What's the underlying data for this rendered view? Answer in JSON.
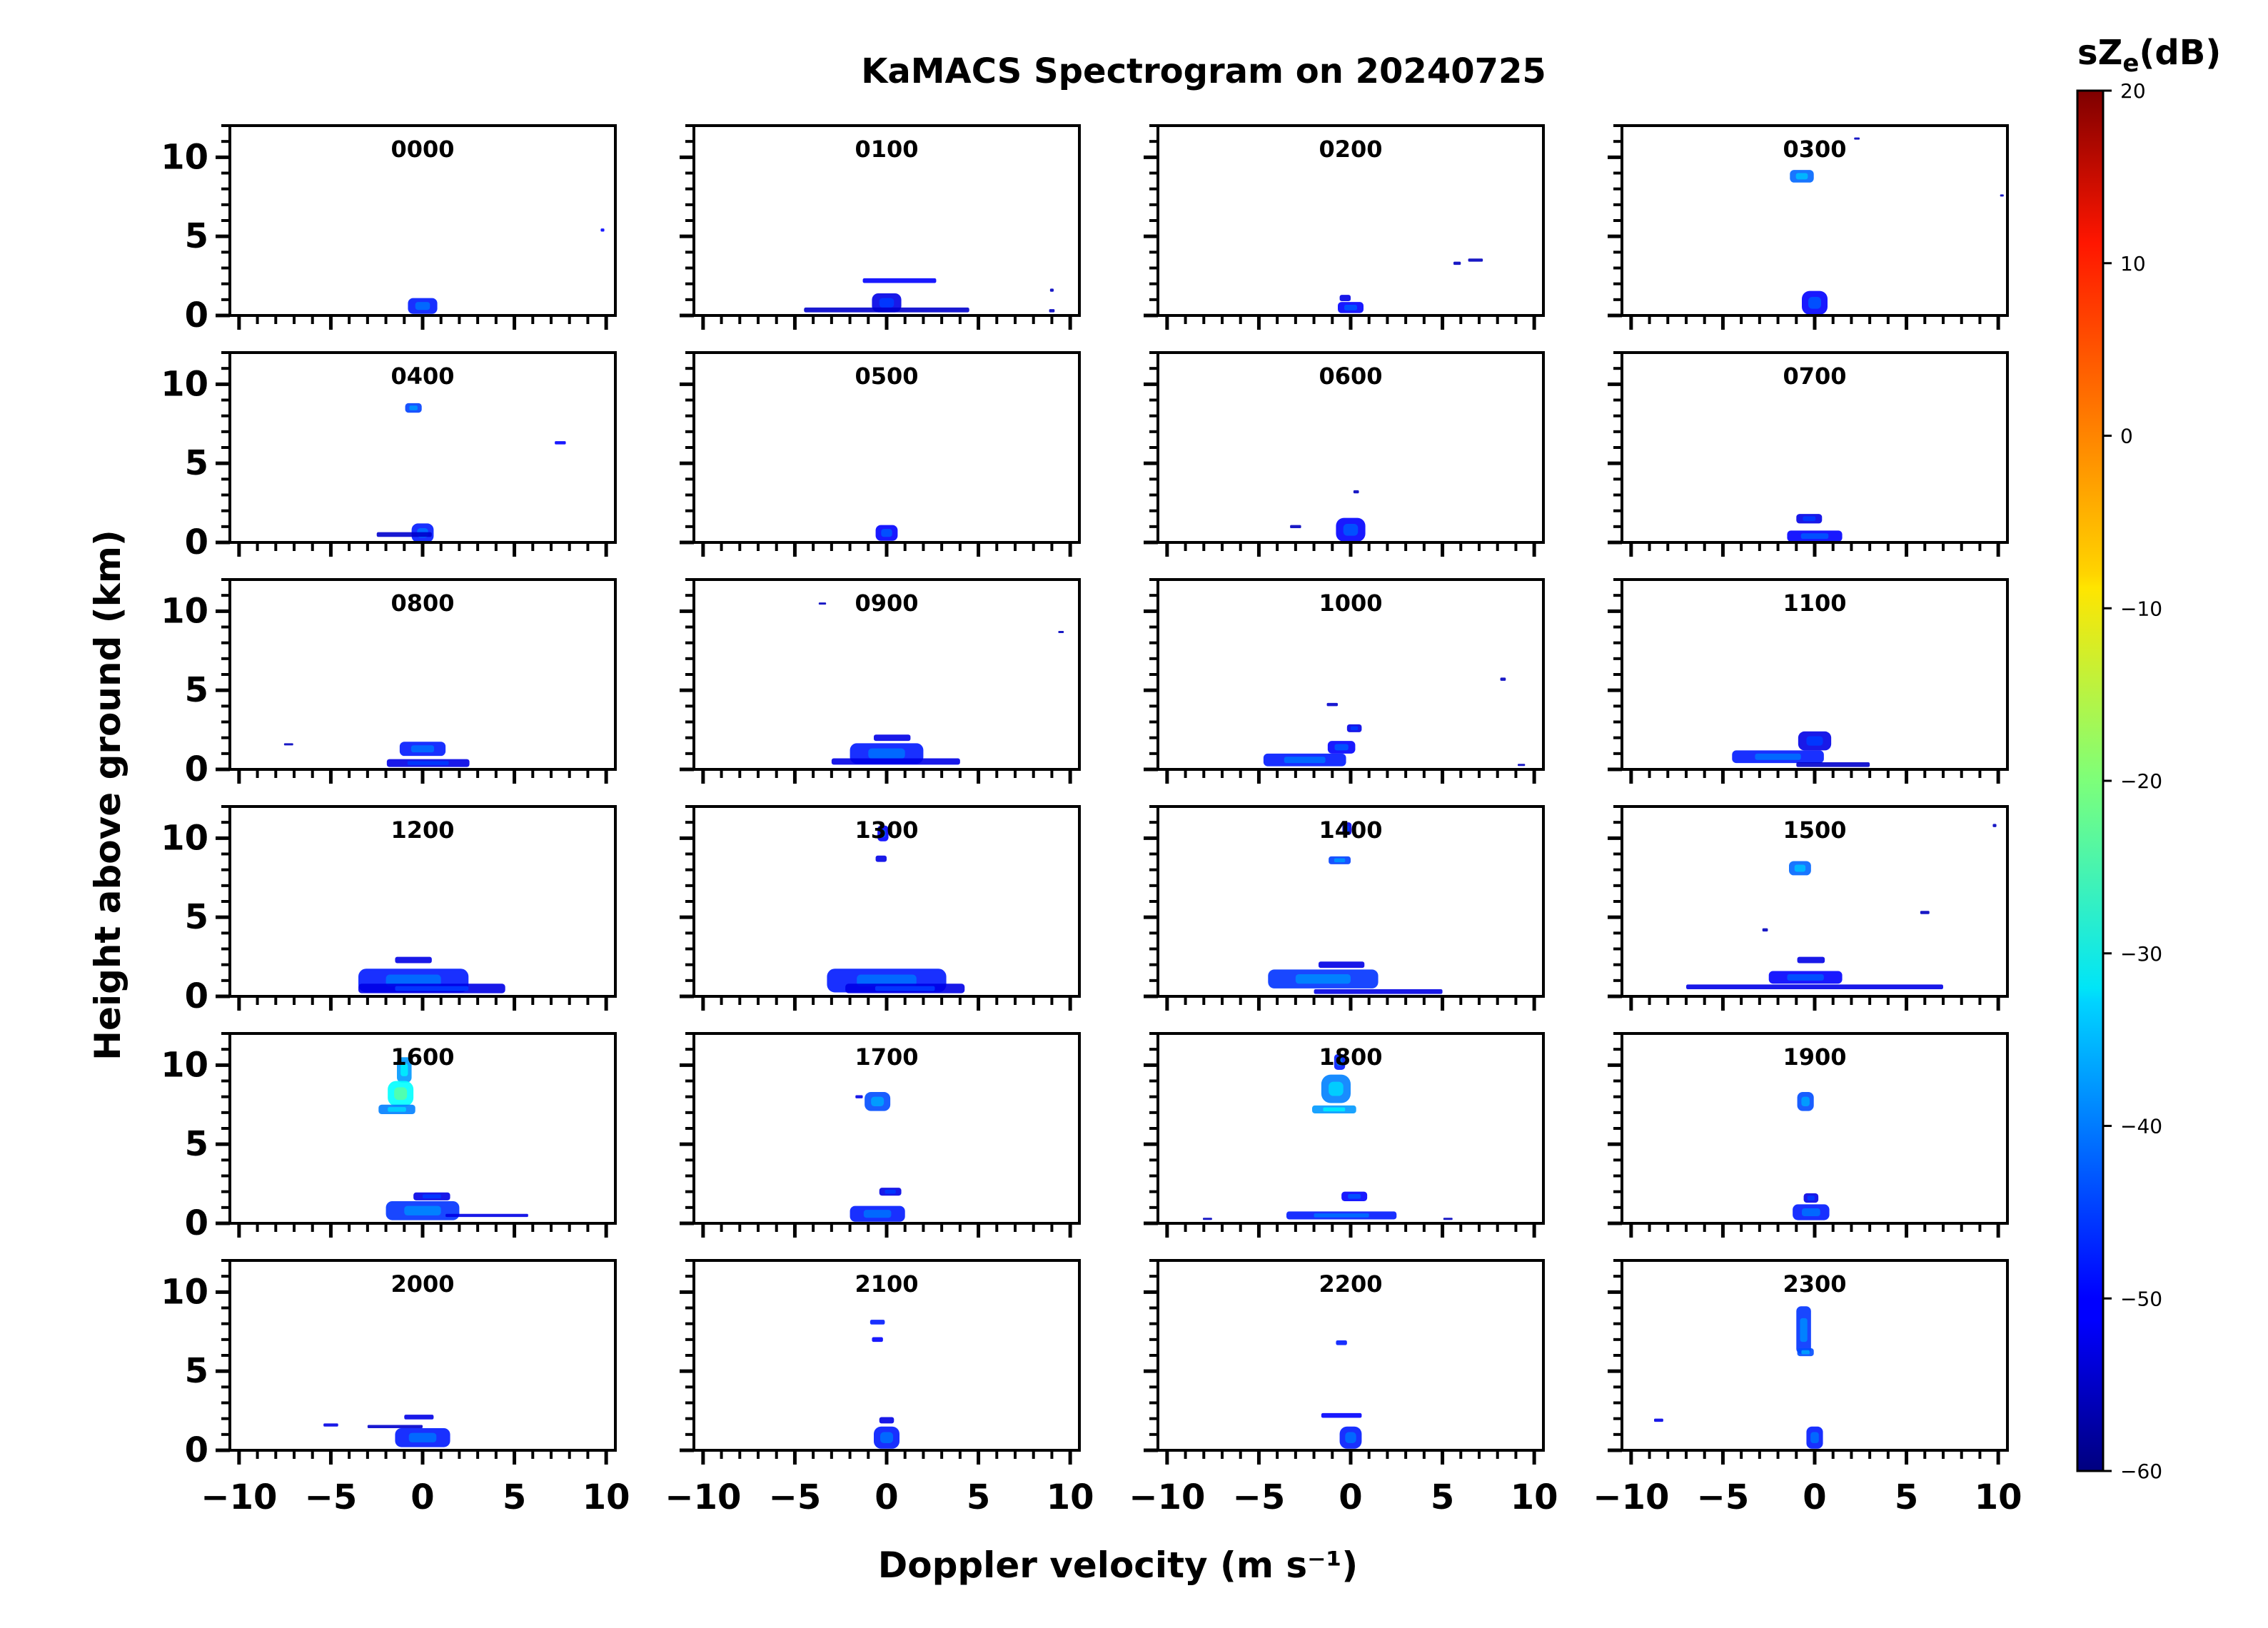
{
  "chart_data": {
    "type": "heatmap",
    "title": "KaMACS Spectrogram on 20240725",
    "xlabel": "Doppler velocity (m s⁻¹)",
    "ylabel": "Height above ground (km)",
    "xlim": [
      -10.5,
      10.5
    ],
    "ylim": [
      0,
      12
    ],
    "xticks": [
      -10,
      -5,
      0,
      5,
      10
    ],
    "xtick_labels": [
      "−10",
      "−5",
      "0",
      "5",
      "10"
    ],
    "yticks": [
      0,
      5,
      10
    ],
    "ytick_labels": [
      "0",
      "5",
      "10"
    ],
    "colorbar": {
      "label": "sZe(dB)",
      "label_main": "sZ",
      "label_sub": "e",
      "label_unit": "(dB)",
      "min": -60,
      "max": 20,
      "ticks": [
        20,
        10,
        0,
        -10,
        -20,
        -30,
        -40,
        -50,
        -60
      ],
      "tick_labels": [
        "20",
        "10",
        "0",
        "−10",
        "−20",
        "−30",
        "−40",
        "−50",
        "−60"
      ]
    },
    "panels": [
      {
        "label": "0000",
        "features": [
          {
            "v": 0,
            "h": 0.6,
            "w": 1.6,
            "dh": 1.0,
            "dbz": -48
          },
          {
            "v": 9.8,
            "h": 5.4,
            "w": 0.2,
            "dh": 0.2,
            "dbz": -50
          }
        ]
      },
      {
        "label": "0100",
        "features": [
          {
            "v": 0.7,
            "h": 2.2,
            "w": 4.0,
            "dh": 0.3,
            "dbz": -50
          },
          {
            "v": 0,
            "h": 0.8,
            "w": 1.6,
            "dh": 1.2,
            "dbz": -52
          },
          {
            "v": 0,
            "h": 0.35,
            "w": 9.0,
            "dh": 0.3,
            "dbz": -54
          },
          {
            "v": 9.0,
            "h": 1.6,
            "w": 0.2,
            "dh": 0.2,
            "dbz": -55
          },
          {
            "v": 9.0,
            "h": 0.3,
            "w": 0.3,
            "dh": 0.2,
            "dbz": -55
          }
        ]
      },
      {
        "label": "0200",
        "features": [
          {
            "v": 0,
            "h": 0.5,
            "w": 1.4,
            "dh": 0.7,
            "dbz": -50
          },
          {
            "v": -0.3,
            "h": 1.1,
            "w": 0.6,
            "dh": 0.4,
            "dbz": -52
          },
          {
            "v": 6.8,
            "h": 3.5,
            "w": 0.8,
            "dh": 0.2,
            "dbz": -55
          },
          {
            "v": 5.8,
            "h": 3.3,
            "w": 0.4,
            "dh": 0.2,
            "dbz": -55
          }
        ]
      },
      {
        "label": "0300",
        "features": [
          {
            "v": -0.7,
            "h": 8.8,
            "w": 1.3,
            "dh": 0.8,
            "dbz": -42
          },
          {
            "v": 0,
            "h": 0.8,
            "w": 1.4,
            "dh": 1.5,
            "dbz": -50
          },
          {
            "v": 2.3,
            "h": 11.2,
            "w": 0.3,
            "dh": 0.1,
            "dbz": -55
          },
          {
            "v": 10.2,
            "h": 7.6,
            "w": 0.2,
            "dh": 0.1,
            "dbz": -55
          }
        ]
      },
      {
        "label": "0400",
        "features": [
          {
            "v": -0.5,
            "h": 8.5,
            "w": 0.9,
            "dh": 0.6,
            "dbz": -45
          },
          {
            "v": 0,
            "h": 0.6,
            "w": 1.2,
            "dh": 1.2,
            "dbz": -48
          },
          {
            "v": -1.0,
            "h": 0.5,
            "w": 3.0,
            "dh": 0.3,
            "dbz": -54
          },
          {
            "v": 7.5,
            "h": 6.3,
            "w": 0.6,
            "dh": 0.2,
            "dbz": -50
          }
        ]
      },
      {
        "label": "0500",
        "features": [
          {
            "v": 0,
            "h": 0.6,
            "w": 1.2,
            "dh": 1.0,
            "dbz": -50
          }
        ]
      },
      {
        "label": "0600",
        "features": [
          {
            "v": 0,
            "h": 0.8,
            "w": 1.6,
            "dh": 1.5,
            "dbz": -50
          },
          {
            "v": 0.3,
            "h": 3.2,
            "w": 0.3,
            "dh": 0.2,
            "dbz": -55
          },
          {
            "v": -3.0,
            "h": 1.0,
            "w": 0.6,
            "dh": 0.2,
            "dbz": -55
          }
        ]
      },
      {
        "label": "0700",
        "features": [
          {
            "v": -0.3,
            "h": 1.5,
            "w": 1.4,
            "dh": 0.6,
            "dbz": -52
          },
          {
            "v": 0,
            "h": 0.4,
            "w": 3.0,
            "dh": 0.7,
            "dbz": -50
          }
        ]
      },
      {
        "label": "0800",
        "features": [
          {
            "v": 0,
            "h": 1.3,
            "w": 2.5,
            "dh": 0.9,
            "dbz": -48
          },
          {
            "v": 0.3,
            "h": 0.4,
            "w": 4.5,
            "dh": 0.5,
            "dbz": -52
          },
          {
            "v": -7.3,
            "h": 1.6,
            "w": 0.5,
            "dh": 0.1,
            "dbz": -55
          }
        ]
      },
      {
        "label": "0900",
        "features": [
          {
            "v": 0,
            "h": 1.0,
            "w": 4.0,
            "dh": 1.3,
            "dbz": -48
          },
          {
            "v": 0.5,
            "h": 0.5,
            "w": 7.0,
            "dh": 0.4,
            "dbz": -52
          },
          {
            "v": 0.3,
            "h": 2.0,
            "w": 2.0,
            "dh": 0.4,
            "dbz": -52
          },
          {
            "v": -3.5,
            "h": 10.5,
            "w": 0.4,
            "dh": 0.1,
            "dbz": -55
          },
          {
            "v": 9.5,
            "h": 8.7,
            "w": 0.3,
            "dh": 0.1,
            "dbz": -55
          }
        ]
      },
      {
        "label": "1000",
        "features": [
          {
            "v": -2.5,
            "h": 0.6,
            "w": 4.5,
            "dh": 0.8,
            "dbz": -48
          },
          {
            "v": -0.5,
            "h": 1.4,
            "w": 1.5,
            "dh": 0.8,
            "dbz": -50
          },
          {
            "v": 0.2,
            "h": 2.6,
            "w": 0.8,
            "dh": 0.5,
            "dbz": -52
          },
          {
            "v": -1.0,
            "h": 4.1,
            "w": 0.6,
            "dh": 0.2,
            "dbz": -54
          },
          {
            "v": 8.3,
            "h": 5.7,
            "w": 0.3,
            "dh": 0.2,
            "dbz": -55
          },
          {
            "v": 9.3,
            "h": 0.3,
            "w": 0.4,
            "dh": 0.1,
            "dbz": -55
          }
        ]
      },
      {
        "label": "1100",
        "features": [
          {
            "v": -2.0,
            "h": 0.8,
            "w": 5.0,
            "dh": 0.8,
            "dbz": -48
          },
          {
            "v": 0,
            "h": 1.8,
            "w": 1.8,
            "dh": 1.2,
            "dbz": -52
          },
          {
            "v": 1.0,
            "h": 0.3,
            "w": 4.0,
            "dh": 0.3,
            "dbz": -54
          }
        ]
      },
      {
        "label": "1200",
        "features": [
          {
            "v": -0.5,
            "h": 1.0,
            "w": 6.0,
            "dh": 1.5,
            "dbz": -48
          },
          {
            "v": 0.5,
            "h": 0.5,
            "w": 8.0,
            "dh": 0.6,
            "dbz": -52
          },
          {
            "v": -0.5,
            "h": 2.3,
            "w": 2.0,
            "dh": 0.4,
            "dbz": -52
          }
        ]
      },
      {
        "label": "1300",
        "features": [
          {
            "v": -0.2,
            "h": 10.3,
            "w": 0.6,
            "dh": 1.0,
            "dbz": -50
          },
          {
            "v": -0.3,
            "h": 8.7,
            "w": 0.6,
            "dh": 0.4,
            "dbz": -52
          },
          {
            "v": 0,
            "h": 1.0,
            "w": 6.5,
            "dh": 1.5,
            "dbz": -48
          },
          {
            "v": 1.0,
            "h": 0.5,
            "w": 6.5,
            "dh": 0.6,
            "dbz": -52
          }
        ]
      },
      {
        "label": "1400",
        "features": [
          {
            "v": -0.6,
            "h": 8.6,
            "w": 1.2,
            "dh": 0.5,
            "dbz": -45
          },
          {
            "v": -0.2,
            "h": 10.6,
            "w": 0.5,
            "dh": 0.8,
            "dbz": -52
          },
          {
            "v": -1.5,
            "h": 1.1,
            "w": 6.0,
            "dh": 1.2,
            "dbz": -46
          },
          {
            "v": 1.5,
            "h": 0.3,
            "w": 7.0,
            "dh": 0.3,
            "dbz": -52
          },
          {
            "v": -0.5,
            "h": 2.0,
            "w": 2.5,
            "dh": 0.4,
            "dbz": -52
          }
        ]
      },
      {
        "label": "1500",
        "features": [
          {
            "v": -0.8,
            "h": 8.1,
            "w": 1.2,
            "dh": 0.9,
            "dbz": -42
          },
          {
            "v": 0,
            "h": 0.6,
            "w": 14.0,
            "dh": 0.3,
            "dbz": -52
          },
          {
            "v": -0.5,
            "h": 1.2,
            "w": 4.0,
            "dh": 0.8,
            "dbz": -50
          },
          {
            "v": -0.2,
            "h": 2.3,
            "w": 1.5,
            "dh": 0.4,
            "dbz": -52
          },
          {
            "v": 6.0,
            "h": 5.3,
            "w": 0.5,
            "dh": 0.2,
            "dbz": -55
          },
          {
            "v": -2.7,
            "h": 4.2,
            "w": 0.3,
            "dh": 0.2,
            "dbz": -55
          },
          {
            "v": 9.8,
            "h": 10.8,
            "w": 0.2,
            "dh": 0.2,
            "dbz": -55
          }
        ]
      },
      {
        "label": "1600",
        "features": [
          {
            "v": -1.0,
            "h": 9.7,
            "w": 0.8,
            "dh": 1.6,
            "dbz": -38
          },
          {
            "v": -1.2,
            "h": 8.2,
            "w": 1.4,
            "dh": 1.6,
            "dbz": -30
          },
          {
            "v": -1.4,
            "h": 7.2,
            "w": 2.0,
            "dh": 0.6,
            "dbz": -40
          },
          {
            "v": 0,
            "h": 0.8,
            "w": 4.0,
            "dh": 1.2,
            "dbz": -46
          },
          {
            "v": 0.5,
            "h": 1.7,
            "w": 2.0,
            "dh": 0.5,
            "dbz": -52
          },
          {
            "v": 3.5,
            "h": 0.5,
            "w": 4.5,
            "dh": 0.2,
            "dbz": -52
          }
        ]
      },
      {
        "label": "1700",
        "features": [
          {
            "v": -0.5,
            "h": 7.7,
            "w": 1.4,
            "dh": 1.2,
            "dbz": -44
          },
          {
            "v": -1.5,
            "h": 8.0,
            "w": 0.4,
            "dh": 0.2,
            "dbz": -52
          },
          {
            "v": -0.5,
            "h": 0.6,
            "w": 3.0,
            "dh": 1.0,
            "dbz": -48
          },
          {
            "v": 0.2,
            "h": 2.0,
            "w": 1.2,
            "dh": 0.5,
            "dbz": -52
          }
        ]
      },
      {
        "label": "1800",
        "features": [
          {
            "v": -0.6,
            "h": 10.2,
            "w": 0.6,
            "dh": 1.0,
            "dbz": -48
          },
          {
            "v": -0.8,
            "h": 8.5,
            "w": 1.6,
            "dh": 1.8,
            "dbz": -40
          },
          {
            "v": -0.9,
            "h": 7.2,
            "w": 2.4,
            "dh": 0.5,
            "dbz": -38
          },
          {
            "v": -0.5,
            "h": 0.5,
            "w": 6.0,
            "dh": 0.5,
            "dbz": -48
          },
          {
            "v": 0.2,
            "h": 1.7,
            "w": 1.4,
            "dh": 0.6,
            "dbz": -50
          },
          {
            "v": -7.8,
            "h": 0.3,
            "w": 0.5,
            "dh": 0.1,
            "dbz": -55
          },
          {
            "v": 5.3,
            "h": 0.3,
            "w": 0.5,
            "dh": 0.1,
            "dbz": -55
          }
        ]
      },
      {
        "label": "1900",
        "features": [
          {
            "v": -0.5,
            "h": 7.7,
            "w": 0.9,
            "dh": 1.2,
            "dbz": -44
          },
          {
            "v": -0.2,
            "h": 0.7,
            "w": 2.0,
            "dh": 1.0,
            "dbz": -48
          },
          {
            "v": -0.2,
            "h": 1.6,
            "w": 0.8,
            "dh": 0.6,
            "dbz": -52
          }
        ]
      },
      {
        "label": "2000",
        "features": [
          {
            "v": 0,
            "h": 0.8,
            "w": 3.0,
            "dh": 1.2,
            "dbz": -48
          },
          {
            "v": -0.2,
            "h": 2.1,
            "w": 1.6,
            "dh": 0.3,
            "dbz": -52
          },
          {
            "v": -5.0,
            "h": 1.6,
            "w": 0.8,
            "dh": 0.2,
            "dbz": -52
          },
          {
            "v": -1.5,
            "h": 1.5,
            "w": 3.0,
            "dh": 0.2,
            "dbz": -54
          }
        ]
      },
      {
        "label": "2100",
        "features": [
          {
            "v": -0.5,
            "h": 8.1,
            "w": 0.8,
            "dh": 0.3,
            "dbz": -48
          },
          {
            "v": -0.5,
            "h": 7.0,
            "w": 0.6,
            "dh": 0.3,
            "dbz": -50
          },
          {
            "v": 0,
            "h": 0.8,
            "w": 1.4,
            "dh": 1.4,
            "dbz": -48
          },
          {
            "v": 0,
            "h": 1.9,
            "w": 0.8,
            "dh": 0.4,
            "dbz": -52
          }
        ]
      },
      {
        "label": "2200",
        "features": [
          {
            "v": -0.5,
            "h": 6.8,
            "w": 0.6,
            "dh": 0.3,
            "dbz": -48
          },
          {
            "v": -0.5,
            "h": 2.2,
            "w": 2.2,
            "dh": 0.3,
            "dbz": -50
          },
          {
            "v": 0,
            "h": 0.8,
            "w": 1.2,
            "dh": 1.4,
            "dbz": -48
          }
        ]
      },
      {
        "label": "2300",
        "features": [
          {
            "v": -0.6,
            "h": 7.6,
            "w": 0.8,
            "dh": 3.0,
            "dbz": -46
          },
          {
            "v": -0.5,
            "h": 6.2,
            "w": 0.9,
            "dh": 0.5,
            "dbz": -44
          },
          {
            "v": 0,
            "h": 0.8,
            "w": 0.9,
            "dh": 1.4,
            "dbz": -48
          },
          {
            "v": -8.5,
            "h": 1.9,
            "w": 0.5,
            "dh": 0.2,
            "dbz": -52
          }
        ]
      }
    ]
  }
}
